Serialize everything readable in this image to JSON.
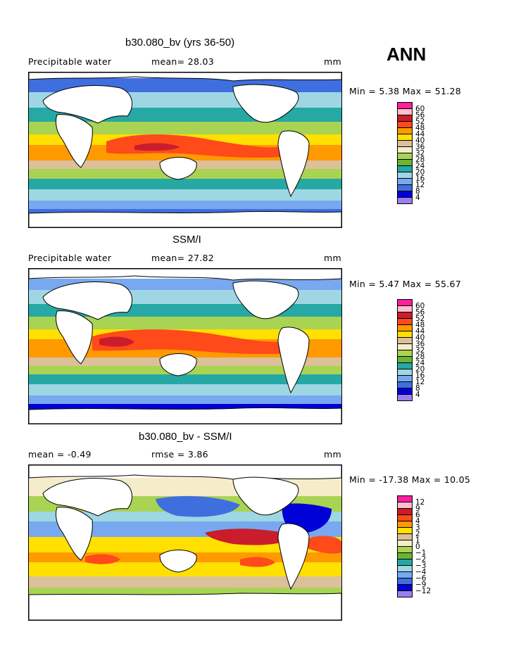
{
  "season_label": "ANN",
  "panels": [
    {
      "title": "b30.080_bv (yrs 36-50)",
      "left_label": "Precipitable water",
      "mid_label": "mean=  28.03",
      "units": "mm",
      "minmax": "Min =    5.38  Max =   51.28",
      "scale": [
        "60",
        "56",
        "52",
        "48",
        "44",
        "40",
        "36",
        "32",
        "28",
        "24",
        "20",
        "16",
        "12",
        "8",
        "4"
      ]
    },
    {
      "title": "SSM/I",
      "left_label": "Precipitable water",
      "mid_label": "mean=  27.82",
      "units": "mm",
      "minmax": "Min =    5.47  Max =   55.67",
      "scale": [
        "60",
        "56",
        "52",
        "48",
        "44",
        "40",
        "36",
        "32",
        "28",
        "24",
        "20",
        "16",
        "12",
        "8",
        "4"
      ]
    },
    {
      "title": "b30.080_bv - SSM/I",
      "left_label": "mean =  -0.49",
      "mid_label": "rmse =    3.86",
      "units": "mm",
      "minmax": "Min = -17.38  Max =   10.05",
      "scale": [
        "12",
        "9",
        "6",
        "4",
        "3",
        "2",
        "1",
        "0",
        "−1",
        "−2",
        "−3",
        "−4",
        "−6",
        "−9",
        "−12"
      ]
    }
  ],
  "colors": {
    "scale": [
      "#ff1f9f",
      "#ffbfcc",
      "#c91d2b",
      "#ff4a1a",
      "#ff9a00",
      "#ffe000",
      "#dcc09a",
      "#f5ecc9",
      "#a9d353",
      "#6cb335",
      "#26a8a4",
      "#9ed6e3",
      "#78a8f0",
      "#3f6fdf",
      "#0000d8",
      "#9b7ff0"
    ]
  }
}
